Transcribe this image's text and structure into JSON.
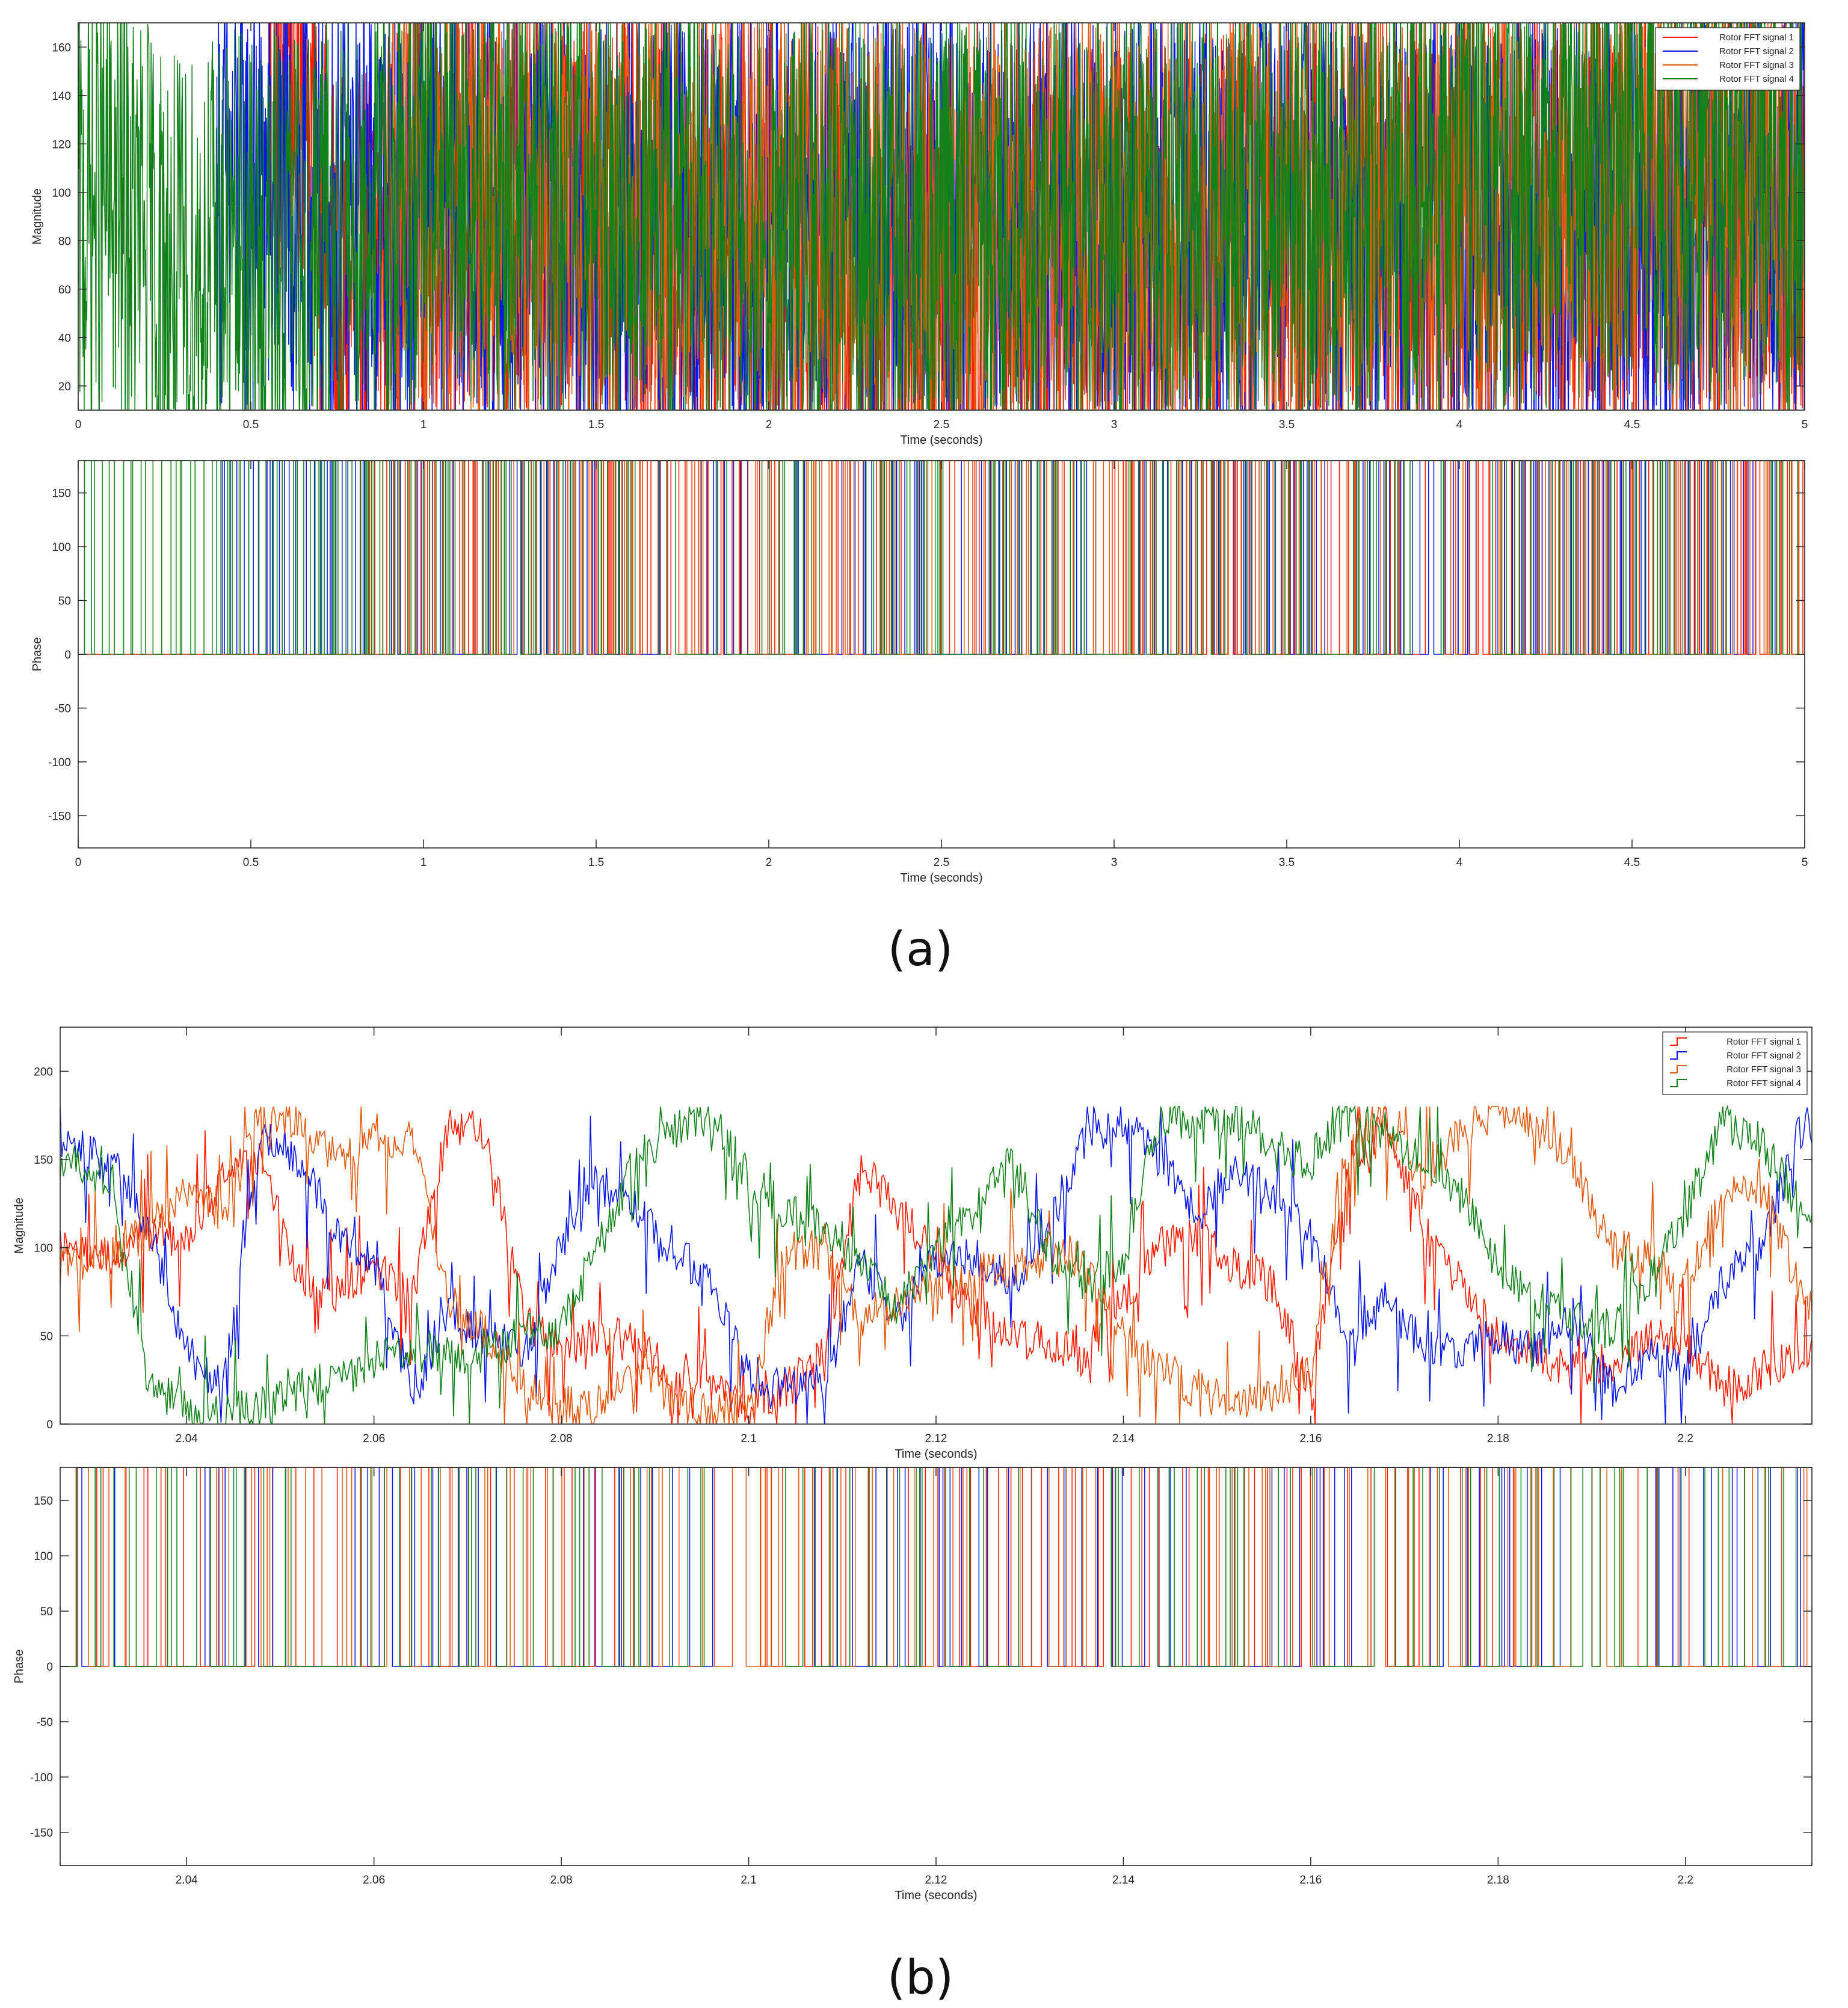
{
  "figure": {
    "panel_a_caption": "(a)",
    "panel_b_caption": "(b)"
  },
  "colors": {
    "signal1": "#ff1a00",
    "signal2": "#0a18e6",
    "signal3": "#e25a10",
    "signal4": "#12811a",
    "axis": "#262626"
  },
  "chart_data": [
    {
      "id": "a-magnitude",
      "type": "line",
      "xlabel": "Time (seconds)",
      "ylabel": "Magnitude",
      "xlim": [
        0,
        5
      ],
      "ylim": [
        10,
        170
      ],
      "xticks": [
        0,
        0.5,
        1,
        1.5,
        2,
        2.5,
        3,
        3.5,
        4,
        4.5,
        5
      ],
      "yticks": [
        20,
        40,
        60,
        80,
        100,
        120,
        140,
        160
      ],
      "legend_position": "top-right",
      "series": [
        {
          "name": "Rotor FFT signal 1",
          "color": "#ff1a00",
          "x": [
            0.0,
            0.25,
            0.5,
            0.55,
            0.6,
            0.65,
            0.7,
            0.75,
            1.0,
            1.5,
            2.0,
            2.5,
            3.0,
            3.5,
            4.0,
            4.5,
            5.0
          ],
          "values": [
            null,
            null,
            null,
            130,
            155,
            160,
            90,
            50,
            95,
            85,
            80,
            60,
            75,
            80,
            95,
            90,
            85
          ]
        },
        {
          "name": "Rotor FFT signal 2",
          "color": "#0a18e6",
          "x": [
            0.0,
            0.4,
            0.5,
            1.0,
            1.5,
            2.0,
            2.5,
            3.0,
            3.5,
            4.0,
            4.5,
            5.0
          ],
          "values": [
            null,
            100,
            95,
            90,
            85,
            80,
            95,
            85,
            90,
            80,
            80,
            100
          ]
        },
        {
          "name": "Rotor FFT signal 3",
          "color": "#e25a10",
          "x": [
            0.0,
            0.5,
            0.9,
            1.0,
            1.5,
            2.0,
            2.5,
            3.0,
            3.5,
            4.0,
            4.5,
            5.0
          ],
          "values": [
            null,
            null,
            100,
            95,
            90,
            90,
            80,
            85,
            90,
            90,
            95,
            85
          ]
        },
        {
          "name": "Rotor FFT signal 4",
          "color": "#12811a",
          "x": [
            0.0,
            0.1,
            0.2,
            0.3,
            0.4,
            0.5,
            1.0,
            1.5,
            2.0,
            2.5,
            3.0,
            3.5,
            4.0,
            4.5,
            5.0
          ],
          "values": [
            90,
            95,
            80,
            60,
            75,
            70,
            100,
            95,
            80,
            85,
            90,
            95,
            100,
            110,
            100
          ]
        }
      ]
    },
    {
      "id": "a-phase",
      "type": "line",
      "xlabel": "Time (seconds)",
      "ylabel": "Phase",
      "xlim": [
        0,
        5
      ],
      "ylim": [
        -180,
        180
      ],
      "xticks": [
        0,
        0.5,
        1,
        1.5,
        2,
        2.5,
        3,
        3.5,
        4,
        4.5,
        5
      ],
      "yticks": [
        -150,
        -100,
        -50,
        0,
        50,
        100,
        150
      ],
      "series": [
        {
          "name": "Rotor FFT signal 1",
          "color": "#ff1a00",
          "levels": [
            0,
            180
          ],
          "active_from": 0.8
        },
        {
          "name": "Rotor FFT signal 2",
          "color": "#0a18e6",
          "levels": [
            0,
            180
          ],
          "active_from": 0.4
        },
        {
          "name": "Rotor FFT signal 3",
          "color": "#e25a10",
          "levels": [
            0,
            180
          ],
          "active_from": 0.9
        },
        {
          "name": "Rotor FFT signal 4",
          "color": "#12811a",
          "levels": [
            0,
            180
          ],
          "active_from": 0.0
        }
      ]
    },
    {
      "id": "b-magnitude",
      "type": "line",
      "xlabel": "Time (seconds)",
      "ylabel": "Magnitude",
      "xlim": [
        2.0265,
        2.2135
      ],
      "ylim": [
        0,
        225
      ],
      "xticks": [
        2.04,
        2.06,
        2.08,
        2.1,
        2.12,
        2.14,
        2.16,
        2.18,
        2.2
      ],
      "xticklabels": [
        "2.04",
        "2.06",
        "2.08",
        "2.1",
        "2.12",
        "2.14",
        "2.16",
        "2.18",
        "2.2"
      ],
      "yticks": [
        0,
        50,
        100,
        150,
        200
      ],
      "legend_position": "top-right",
      "series": [
        {
          "name": "Rotor FFT signal 1",
          "color": "#ff1a00",
          "x": [
            2.027,
            2.032,
            2.036,
            2.04,
            2.044,
            2.048,
            2.052,
            2.056,
            2.06,
            2.064,
            2.068,
            2.072,
            2.076,
            2.08,
            2.084,
            2.088,
            2.092,
            2.096,
            2.1,
            2.104,
            2.108,
            2.112,
            2.116,
            2.12,
            2.124,
            2.128,
            2.132,
            2.136,
            2.14,
            2.144,
            2.148,
            2.152,
            2.156,
            2.16,
            2.164,
            2.168,
            2.172,
            2.176,
            2.18,
            2.184,
            2.188,
            2.192,
            2.196,
            2.2,
            2.204,
            2.208,
            2.2125
          ],
          "values": [
            100,
            95,
            110,
            105,
            140,
            150,
            80,
            75,
            90,
            70,
            170,
            165,
            60,
            40,
            50,
            45,
            30,
            25,
            10,
            20,
            40,
            145,
            120,
            95,
            65,
            50,
            45,
            40,
            70,
            100,
            105,
            90,
            80,
            15,
            150,
            170,
            110,
            80,
            50,
            40,
            30,
            35,
            50,
            45,
            20,
            30,
            40
          ]
        },
        {
          "name": "Rotor FFT signal 2",
          "color": "#0a18e6",
          "x": [
            2.027,
            2.032,
            2.036,
            2.04,
            2.044,
            2.048,
            2.052,
            2.056,
            2.06,
            2.064,
            2.068,
            2.072,
            2.076,
            2.08,
            2.084,
            2.088,
            2.092,
            2.096,
            2.1,
            2.104,
            2.108,
            2.112,
            2.116,
            2.12,
            2.124,
            2.128,
            2.132,
            2.136,
            2.14,
            2.144,
            2.148,
            2.152,
            2.156,
            2.16,
            2.164,
            2.168,
            2.172,
            2.176,
            2.18,
            2.184,
            2.188,
            2.192,
            2.196,
            2.2,
            2.204,
            2.208,
            2.2125
          ],
          "values": [
            160,
            150,
            110,
            40,
            20,
            170,
            150,
            110,
            90,
            20,
            60,
            50,
            40,
            100,
            140,
            120,
            100,
            80,
            30,
            20,
            25,
            90,
            60,
            95,
            95,
            80,
            110,
            165,
            170,
            150,
            120,
            145,
            130,
            105,
            50,
            70,
            45,
            40,
            50,
            40,
            60,
            20,
            40,
            30,
            80,
            100,
            170
          ]
        },
        {
          "name": "Rotor FFT signal 3",
          "color": "#e25a10",
          "x": [
            2.027,
            2.032,
            2.036,
            2.04,
            2.044,
            2.048,
            2.052,
            2.056,
            2.06,
            2.064,
            2.068,
            2.072,
            2.076,
            2.08,
            2.084,
            2.088,
            2.092,
            2.096,
            2.1,
            2.104,
            2.108,
            2.112,
            2.116,
            2.12,
            2.124,
            2.128,
            2.132,
            2.136,
            2.14,
            2.144,
            2.148,
            2.152,
            2.156,
            2.16,
            2.164,
            2.168,
            2.172,
            2.176,
            2.18,
            2.184,
            2.188,
            2.192,
            2.196,
            2.2,
            2.204,
            2.208,
            2.2125
          ],
          "values": [
            90,
            100,
            110,
            130,
            120,
            175,
            170,
            150,
            160,
            165,
            70,
            50,
            20,
            10,
            10,
            30,
            15,
            5,
            10,
            100,
            95,
            60,
            70,
            80,
            85,
            90,
            95,
            95,
            50,
            30,
            20,
            10,
            15,
            30,
            160,
            170,
            140,
            165,
            180,
            170,
            150,
            100,
            95,
            80,
            130,
            140,
            70
          ]
        },
        {
          "name": "Rotor FFT signal 4",
          "color": "#12811a",
          "x": [
            2.027,
            2.032,
            2.036,
            2.04,
            2.044,
            2.048,
            2.052,
            2.056,
            2.06,
            2.064,
            2.068,
            2.072,
            2.076,
            2.08,
            2.084,
            2.088,
            2.092,
            2.096,
            2.1,
            2.104,
            2.108,
            2.112,
            2.116,
            2.12,
            2.124,
            2.128,
            2.132,
            2.136,
            2.14,
            2.144,
            2.148,
            2.152,
            2.156,
            2.16,
            2.164,
            2.168,
            2.172,
            2.176,
            2.18,
            2.184,
            2.188,
            2.192,
            2.196,
            2.2,
            2.204,
            2.208,
            2.2125
          ],
          "values": [
            150,
            140,
            20,
            10,
            5,
            10,
            20,
            25,
            35,
            45,
            40,
            40,
            50,
            55,
            100,
            150,
            165,
            175,
            140,
            120,
            110,
            90,
            65,
            100,
            120,
            150,
            100,
            75,
            95,
            175,
            170,
            175,
            155,
            150,
            175,
            165,
            150,
            130,
            90,
            70,
            60,
            55,
            80,
            120,
            170,
            160,
            120
          ]
        }
      ]
    },
    {
      "id": "b-phase",
      "type": "line",
      "xlabel": "Time (seconds)",
      "ylabel": "Phase",
      "xlim": [
        2.0265,
        2.2135
      ],
      "ylim": [
        -180,
        180
      ],
      "xticks": [
        2.04,
        2.06,
        2.08,
        2.1,
        2.12,
        2.14,
        2.16,
        2.18,
        2.2
      ],
      "xticklabels": [
        "2.04",
        "2.06",
        "2.08",
        "2.1",
        "2.12",
        "2.14",
        "2.16",
        "2.18",
        "2.2"
      ],
      "yticks": [
        -150,
        -100,
        -50,
        0,
        50,
        100,
        150
      ],
      "series": [
        {
          "name": "Rotor FFT signal 1",
          "color": "#ff1a00",
          "levels": [
            0,
            180
          ]
        },
        {
          "name": "Rotor FFT signal 2",
          "color": "#0a18e6",
          "levels": [
            0,
            180
          ]
        },
        {
          "name": "Rotor FFT signal 3",
          "color": "#e25a10",
          "levels": [
            0,
            180
          ]
        },
        {
          "name": "Rotor FFT signal 4",
          "color": "#12811a",
          "levels": [
            0,
            180
          ]
        }
      ]
    }
  ]
}
